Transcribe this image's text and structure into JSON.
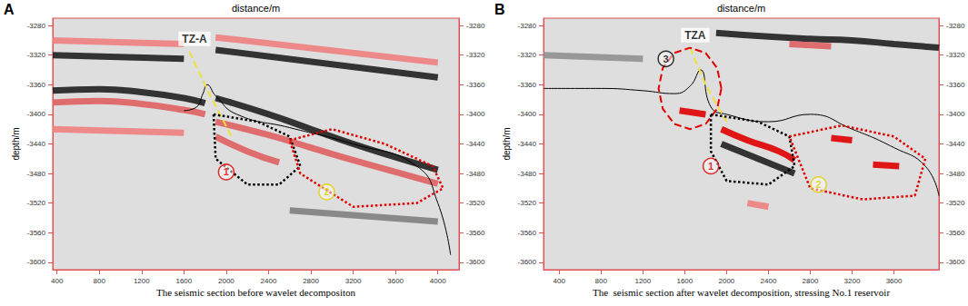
{
  "chart_data": [
    {
      "type": "seismic_section",
      "title": "A",
      "subtitle": "The seismic section before wavelet decompositon",
      "x_label": "distance/m",
      "y_label": "depth/m",
      "xlim": [
        360,
        4200
      ],
      "xticks": [
        400,
        800,
        1200,
        1600,
        2000,
        2400,
        2800,
        3200,
        3600,
        4000
      ],
      "ylim": [
        -3610,
        -3270
      ],
      "yticks": [
        -3280,
        -3320,
        -3360,
        -3400,
        -3440,
        -3480,
        -3520,
        -3560,
        -3600
      ],
      "grid": false,
      "series": [
        {
          "type": "line",
          "color": "#f08080",
          "line_style": "band",
          "x": [
            360,
            1600
          ],
          "y": [
            -3300,
            -3305
          ]
        },
        {
          "type": "line",
          "color": "#f08080",
          "line_style": "band",
          "x": [
            1900,
            4000
          ],
          "y": [
            -3296,
            -3330
          ]
        },
        {
          "type": "line",
          "color": "#202020",
          "line_style": "band",
          "x": [
            360,
            1600
          ],
          "y": [
            -3320,
            -3325
          ]
        },
        {
          "type": "line",
          "color": "#202020",
          "line_style": "band",
          "x": [
            1900,
            4000
          ],
          "y": [
            -3313,
            -3350
          ]
        },
        {
          "type": "line",
          "color": "#202020",
          "line_style": "band",
          "x": [
            360,
            800,
            1200,
            1600,
            1800
          ],
          "y": [
            -3368,
            -3366,
            -3370,
            -3378,
            -3385
          ]
        },
        {
          "type": "line",
          "color": "#202020",
          "line_style": "band",
          "x": [
            1900,
            2400,
            2800,
            3200,
            3600,
            4000
          ],
          "y": [
            -3378,
            -3400,
            -3420,
            -3440,
            -3458,
            -3475
          ]
        },
        {
          "type": "line",
          "color": "#e06060",
          "line_style": "band",
          "x": [
            360,
            800,
            1200,
            1600,
            1800
          ],
          "y": [
            -3384,
            -3382,
            -3386,
            -3394,
            -3400
          ]
        },
        {
          "type": "line",
          "color": "#e06060",
          "line_style": "band",
          "x": [
            1900,
            2400,
            2800,
            3200,
            3600,
            4000
          ],
          "y": [
            -3410,
            -3428,
            -3445,
            -3462,
            -3478,
            -3494
          ]
        },
        {
          "type": "line",
          "color": "#e06060",
          "line_style": "band",
          "x": [
            1900,
            2200,
            2500
          ],
          "y": [
            -3430,
            -3450,
            -3465
          ]
        },
        {
          "type": "line",
          "color": "#f08080",
          "line_style": "band",
          "x": [
            360,
            1600
          ],
          "y": [
            -3420,
            -3425
          ]
        },
        {
          "type": "line",
          "color": "#808080",
          "line_style": "band",
          "x": [
            2600,
            4000
          ],
          "y": [
            -3530,
            -3545
          ]
        },
        {
          "type": "line",
          "color": "#000000",
          "line_style": "solid",
          "x": [
            1600,
            1720,
            1780,
            1820,
            1900,
            2100,
            2600,
            3200,
            3800,
            4000,
            4120
          ],
          "y": [
            -3395,
            -3390,
            -3372,
            -3360,
            -3375,
            -3400,
            -3418,
            -3440,
            -3470,
            -3520,
            -3590
          ]
        },
        {
          "type": "line",
          "color": "#f0e040",
          "line_style": "dashed",
          "x": [
            1650,
            1850,
            2050
          ],
          "y": [
            -3315,
            -3375,
            -3430
          ]
        },
        {
          "type": "line",
          "color": "#000000",
          "line_style": "dotted",
          "x": [
            1880,
            2300,
            2600,
            2700,
            2500,
            2200,
            1900,
            1880
          ],
          "y": [
            -3400,
            -3410,
            -3430,
            -3470,
            -3495,
            -3495,
            -3460,
            -3400
          ]
        },
        {
          "type": "line",
          "color": "#e00000",
          "line_style": "dotted",
          "x": [
            2600,
            3000,
            3500,
            3950,
            4050,
            3800,
            3200,
            2700,
            2600
          ],
          "y": [
            -3435,
            -3420,
            -3440,
            -3470,
            -3500,
            -3520,
            -3525,
            -3480,
            -3435
          ]
        }
      ],
      "annotations": [
        {
          "text": "TZ-A",
          "x": 1700,
          "y": -3298,
          "color": "#000000",
          "marker": "box"
        },
        {
          "text": "1",
          "x": 2000,
          "y": -3478,
          "color": "#e00000",
          "marker": "circle"
        },
        {
          "text": "2",
          "x": 2950,
          "y": -3505,
          "color": "#e0d000",
          "marker": "circle"
        }
      ]
    },
    {
      "type": "seismic_section",
      "title": "B",
      "subtitle": "The  seismic section after wavelet decomposition, stressing No.1 reservoir",
      "x_label": "distance/m",
      "y_label": "depth/m",
      "xlim": [
        250,
        4030
      ],
      "xticks": [
        400,
        800,
        1200,
        1600,
        2000,
        2400,
        2800,
        3200,
        3600
      ],
      "ylim": [
        -3610,
        -3270
      ],
      "yticks": [
        -3280,
        -3320,
        -3360,
        -3400,
        -3440,
        -3480,
        -3520,
        -3560,
        -3600
      ],
      "grid": false,
      "series": [
        {
          "type": "line",
          "color": "#202020",
          "line_style": "band",
          "x": [
            1900,
            2400,
            2800,
            3200,
            3600,
            4030
          ],
          "y": [
            -3290,
            -3295,
            -3298,
            -3300,
            -3305,
            -3310
          ]
        },
        {
          "type": "line",
          "color": "#e06060",
          "line_style": "band",
          "x": [
            2600,
            3000
          ],
          "y": [
            -3305,
            -3308
          ]
        },
        {
          "type": "line",
          "color": "#909090",
          "line_style": "band",
          "x": [
            250,
            1200
          ],
          "y": [
            -3320,
            -3325
          ]
        },
        {
          "type": "line",
          "color": "#e00000",
          "line_style": "band",
          "x": [
            1550,
            1800
          ],
          "y": [
            -3395,
            -3400
          ]
        },
        {
          "type": "line",
          "color": "#e00000",
          "line_style": "band",
          "x": [
            1950,
            2200,
            2500,
            2650
          ],
          "y": [
            -3420,
            -3435,
            -3450,
            -3462
          ]
        },
        {
          "type": "line",
          "color": "#202020",
          "line_style": "band",
          "x": [
            1950,
            2650
          ],
          "y": [
            -3440,
            -3480
          ]
        },
        {
          "type": "line",
          "color": "#e00000",
          "line_style": "band",
          "x": [
            3000,
            3200
          ],
          "y": [
            -3432,
            -3435
          ]
        },
        {
          "type": "line",
          "color": "#e00000",
          "line_style": "band",
          "x": [
            3400,
            3650
          ],
          "y": [
            -3468,
            -3470
          ]
        },
        {
          "type": "line",
          "color": "#f08080",
          "line_style": "band",
          "x": [
            2200,
            2400
          ],
          "y": [
            -3520,
            -3525
          ]
        },
        {
          "type": "line",
          "color": "#000000",
          "line_style": "solid",
          "x": [
            250,
            800,
            1200,
            1500,
            1650,
            1750,
            1850,
            2000,
            2400,
            2800,
            3200,
            3600,
            3900,
            4030
          ],
          "y": [
            -3365,
            -3365,
            -3368,
            -3372,
            -3362,
            -3340,
            -3390,
            -3400,
            -3410,
            -3400,
            -3420,
            -3445,
            -3470,
            -3510
          ]
        },
        {
          "type": "line",
          "color": "#f0e040",
          "line_style": "dashed",
          "x": [
            1650,
            1800,
            2000
          ],
          "y": [
            -3310,
            -3360,
            -3410
          ]
        },
        {
          "type": "line",
          "color": "#e00000",
          "line_style": "dashed",
          "x": [
            1950,
            1910,
            1800,
            1650,
            1500,
            1390,
            1350,
            1390,
            1500,
            1650,
            1800,
            1910,
            1950
          ],
          "y": [
            -3365,
            -3337.5,
            -3317,
            -3310,
            -3317,
            -3337.5,
            -3365,
            -3392.5,
            -3413,
            -3420,
            -3413,
            -3392.5,
            -3365
          ]
        },
        {
          "type": "line",
          "color": "#000000",
          "line_style": "dotted",
          "x": [
            1850,
            2300,
            2600,
            2650,
            2400,
            2000,
            1850,
            1850
          ],
          "y": [
            -3400,
            -3410,
            -3430,
            -3470,
            -3495,
            -3490,
            -3450,
            -3400
          ]
        },
        {
          "type": "line",
          "color": "#e00000",
          "line_style": "dotted",
          "x": [
            2600,
            3100,
            3600,
            3900,
            3800,
            3300,
            2800,
            2600
          ],
          "y": [
            -3430,
            -3415,
            -3430,
            -3460,
            -3510,
            -3515,
            -3500,
            -3430
          ]
        }
      ],
      "annotations": [
        {
          "text": "TZA",
          "x": 1700,
          "y": -3293,
          "color": "#000000",
          "marker": "box"
        },
        {
          "text": "3",
          "x": 1420,
          "y": -3325,
          "color": "#000000",
          "marker": "circle"
        },
        {
          "text": "1",
          "x": 1850,
          "y": -3470,
          "color": "#e00000",
          "marker": "circle"
        },
        {
          "text": "2",
          "x": 2880,
          "y": -3495,
          "color": "#e0d000",
          "marker": "circle"
        }
      ]
    }
  ]
}
